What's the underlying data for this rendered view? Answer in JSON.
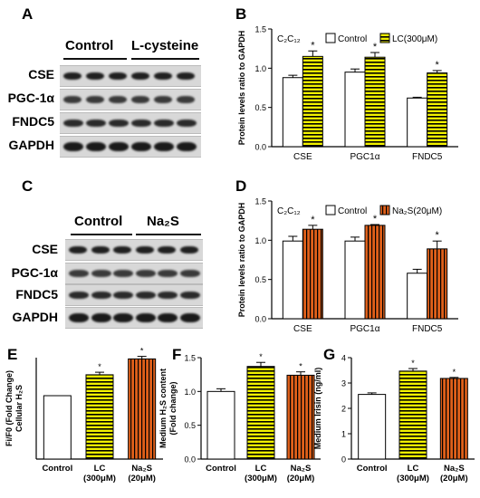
{
  "panels": {
    "A": "A",
    "B": "B",
    "C": "C",
    "D": "D",
    "E": "E",
    "F": "F",
    "G": "G"
  },
  "colors": {
    "control": "#ffffff",
    "lc": "#f2f200",
    "lc_stripe": "#000000",
    "na2s": "#e0601a",
    "na2s_stripe": "#000000"
  },
  "blot_A": {
    "groups": [
      "Control",
      "L-cysteine"
    ],
    "rows": [
      "CSE",
      "PGC-1α",
      "FNDC5",
      "GAPDH"
    ]
  },
  "blot_C": {
    "groups": [
      "Control",
      "Na₂S"
    ],
    "rows": [
      "CSE",
      "PGC-1α",
      "FNDC5",
      "GAPDH"
    ]
  },
  "chart_data": [
    {
      "panel": "B",
      "type": "bar",
      "cell_label": "C₂C₁₂",
      "ylabel": "Protein levels ratio to GAPDH",
      "ylim": [
        0,
        1.5
      ],
      "yticks": [
        "0.0",
        "0.5",
        "1.0",
        "1.5"
      ],
      "categories": [
        "CSE",
        "PGC1α",
        "FNDC5"
      ],
      "series": [
        {
          "name": "Control",
          "values": [
            0.88,
            0.95,
            0.62
          ],
          "errors": [
            0.03,
            0.04,
            0.01
          ]
        },
        {
          "name": "LC(300μM)",
          "values": [
            1.15,
            1.14,
            0.94
          ],
          "errors": [
            0.07,
            0.06,
            0.03
          ]
        }
      ],
      "significance": [
        "*",
        "*",
        "*"
      ]
    },
    {
      "panel": "D",
      "type": "bar",
      "cell_label": "C₂C₁₂",
      "ylabel": "Protein levels ratio to GAPDH",
      "ylim": [
        0,
        1.5
      ],
      "yticks": [
        "0.0",
        "0.5",
        "1.0",
        "1.5"
      ],
      "categories": [
        "CSE",
        "PGC1α",
        "FNDC5"
      ],
      "series": [
        {
          "name": "Control",
          "values": [
            0.99,
            0.99,
            0.58
          ],
          "errors": [
            0.06,
            0.05,
            0.05
          ]
        },
        {
          "name": "Na₂S(20μM)",
          "values": [
            1.14,
            1.19,
            0.89
          ],
          "errors": [
            0.05,
            0.01,
            0.1
          ]
        }
      ],
      "significance": [
        "*",
        "*",
        "*"
      ]
    },
    {
      "panel": "E",
      "type": "bar",
      "ylabel": "Fi/F0 (Fold Change)\nCellular H₂S",
      "ylim": [
        0,
        1.6
      ],
      "yticks": [],
      "categories": [
        "Control",
        "LC\n(300μM)",
        "Na₂S\n(20μM)"
      ],
      "values": [
        1.0,
        1.33,
        1.58
      ],
      "errors": [
        0,
        0.04,
        0.04
      ],
      "significance": [
        "",
        "*",
        "*"
      ]
    },
    {
      "panel": "F",
      "type": "bar",
      "ylabel": "Medium H₂S content\n(Fold change)",
      "ylim": [
        0,
        1.5
      ],
      "yticks": [
        "0.0",
        "0.5",
        "1.0",
        "1.5"
      ],
      "categories": [
        "Control",
        "LC\n(300μM)",
        "Na₂S\n(20μM)"
      ],
      "values": [
        1.0,
        1.37,
        1.24
      ],
      "errors": [
        0.04,
        0.06,
        0.05
      ],
      "significance": [
        "",
        "*",
        "*"
      ]
    },
    {
      "panel": "G",
      "type": "bar",
      "ylabel": "Medium Irisin (ng/ml)",
      "ylim": [
        0,
        4
      ],
      "yticks": [
        "0",
        "1",
        "2",
        "3",
        "4"
      ],
      "categories": [
        "Control",
        "LC\n(300μM)",
        "Na₂S\n(20μM)"
      ],
      "values": [
        2.55,
        3.47,
        3.18
      ],
      "errors": [
        0.06,
        0.1,
        0.04
      ],
      "significance": [
        "",
        "*",
        "*"
      ]
    }
  ]
}
